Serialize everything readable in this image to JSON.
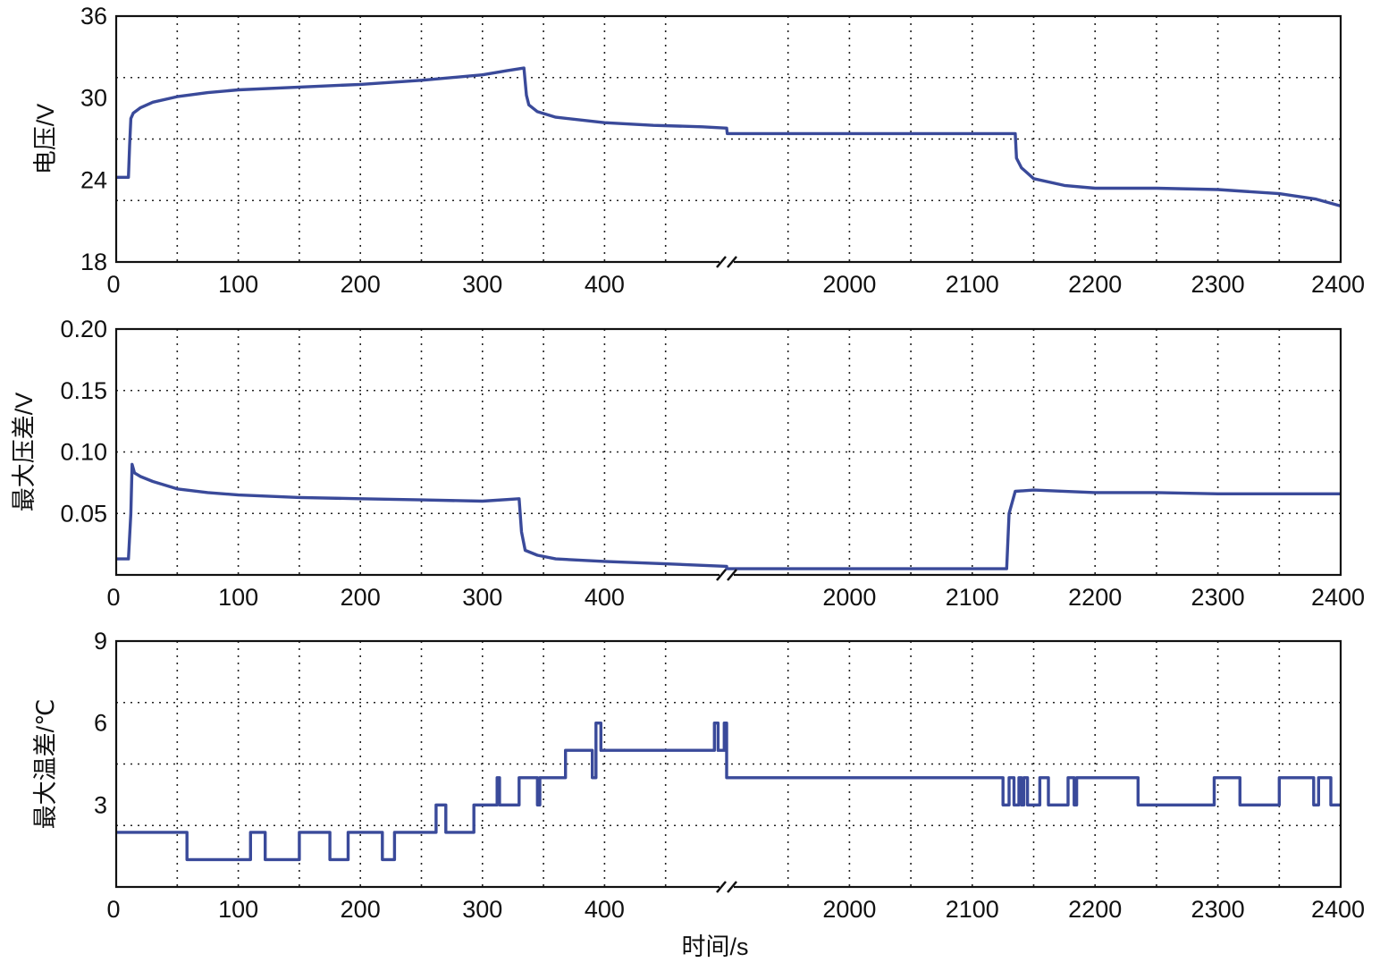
{
  "chart_data": [
    {
      "type": "line",
      "ylabel": "电压/V",
      "xlabel": "",
      "ylim": [
        18,
        36
      ],
      "yticks": [
        "18",
        "24",
        "30",
        "36"
      ],
      "xticks": [
        "0",
        "100",
        "200",
        "300",
        "400",
        "2000",
        "2100",
        "2200",
        "2300",
        "2400"
      ],
      "axis_break": [
        500,
        1900
      ],
      "grid": true,
      "series": [
        {
          "color": "#3a4a9a",
          "x": [
            0,
            10,
            11,
            12,
            14,
            20,
            30,
            50,
            75,
            100,
            150,
            200,
            250,
            300,
            320,
            334,
            336,
            338,
            345,
            360,
            400,
            440,
            480,
            500,
            1900,
            1900.5,
            1950,
            2000,
            2100,
            2130,
            2135,
            2136,
            2140,
            2150,
            2175,
            2200,
            2250,
            2300,
            2350,
            2380,
            2400
          ],
          "y": [
            24.2,
            24.2,
            26.5,
            28.5,
            28.9,
            29.3,
            29.7,
            30.1,
            30.4,
            30.6,
            30.8,
            31.0,
            31.3,
            31.7,
            32.0,
            32.2,
            30.2,
            29.5,
            29.0,
            28.6,
            28.2,
            28.0,
            27.9,
            27.8,
            27.8,
            27.4,
            27.4,
            27.4,
            27.4,
            27.4,
            27.4,
            25.6,
            24.9,
            24.1,
            23.6,
            23.4,
            23.4,
            23.3,
            23.0,
            22.6,
            22.1
          ]
        }
      ]
    },
    {
      "type": "line",
      "ylabel": "最大压差/V",
      "xlabel": "",
      "ylim": [
        0,
        0.2
      ],
      "yticks": [
        "0.05",
        "0.10",
        "0.15",
        "0.20"
      ],
      "xticks": [
        "0",
        "100",
        "200",
        "300",
        "400",
        "2000",
        "2100",
        "2200",
        "2300",
        "2400"
      ],
      "axis_break": [
        500,
        1900
      ],
      "grid": true,
      "series": [
        {
          "color": "#3a4a9a",
          "x": [
            0,
            10,
            12,
            13,
            15,
            20,
            30,
            50,
            75,
            100,
            150,
            200,
            250,
            300,
            330,
            332,
            335,
            345,
            360,
            400,
            450,
            500,
            1900,
            1950,
            2000,
            2100,
            2128,
            2130,
            2135,
            2150,
            2200,
            2250,
            2300,
            2350,
            2400
          ],
          "y": [
            0.013,
            0.013,
            0.05,
            0.09,
            0.083,
            0.08,
            0.076,
            0.07,
            0.067,
            0.065,
            0.063,
            0.062,
            0.061,
            0.06,
            0.062,
            0.035,
            0.02,
            0.016,
            0.013,
            0.011,
            0.009,
            0.007,
            0.005,
            0.005,
            0.005,
            0.005,
            0.005,
            0.05,
            0.068,
            0.069,
            0.067,
            0.067,
            0.066,
            0.066,
            0.066
          ]
        }
      ]
    },
    {
      "type": "line",
      "ylabel": "最大温差/℃",
      "xlabel": "时间/s",
      "ylim": [
        0,
        9
      ],
      "yticks": [
        "3",
        "6",
        "9"
      ],
      "xticks": [
        "0",
        "100",
        "200",
        "300",
        "400",
        "2000",
        "2100",
        "2200",
        "2300",
        "2400"
      ],
      "axis_break": [
        500,
        1900
      ],
      "grid": true,
      "series": [
        {
          "color": "#3a4a9a",
          "x": [
            0,
            58,
            58,
            110,
            110,
            122,
            122,
            125,
            125,
            150,
            150,
            175,
            175,
            190,
            190,
            218,
            218,
            228,
            228,
            262,
            262,
            270,
            270,
            293,
            293,
            312,
            312,
            314,
            314,
            330,
            330,
            345,
            345,
            347,
            347,
            368,
            368,
            390,
            390,
            393,
            393,
            397,
            397,
            400,
            400,
            490,
            490,
            493,
            493,
            498,
            498,
            500,
            500,
            1900,
            1900,
            2125,
            2125,
            2130,
            2130,
            2134,
            2134,
            2138,
            2138,
            2140,
            2140,
            2142,
            2142,
            2145,
            2145,
            2155,
            2155,
            2162,
            2162,
            2178,
            2178,
            2183,
            2183,
            2185,
            2185,
            2187,
            2187,
            2235,
            2235,
            2297,
            2297,
            2318,
            2318,
            2350,
            2350,
            2378,
            2378,
            2382,
            2382,
            2392,
            2392,
            2400
          ],
          "y": [
            2,
            2,
            1,
            1,
            2,
            2,
            1,
            1,
            1,
            1,
            2,
            2,
            1,
            1,
            2,
            2,
            1,
            1,
            2,
            2,
            3,
            3,
            2,
            2,
            3,
            3,
            4,
            4,
            3,
            3,
            4,
            4,
            3,
            3,
            4,
            4,
            5,
            5,
            4,
            4,
            6,
            6,
            5,
            5,
            5,
            5,
            6,
            6,
            5,
            5,
            6,
            6,
            4,
            4,
            4,
            4,
            3,
            3,
            4,
            4,
            3,
            3,
            4,
            4,
            3,
            3,
            4,
            4,
            3,
            3,
            4,
            4,
            3,
            3,
            4,
            4,
            3,
            3,
            4,
            4,
            4,
            4,
            3,
            3,
            4,
            4,
            3,
            3,
            4,
            4,
            3,
            3,
            4,
            4,
            3,
            3
          ]
        }
      ]
    }
  ]
}
